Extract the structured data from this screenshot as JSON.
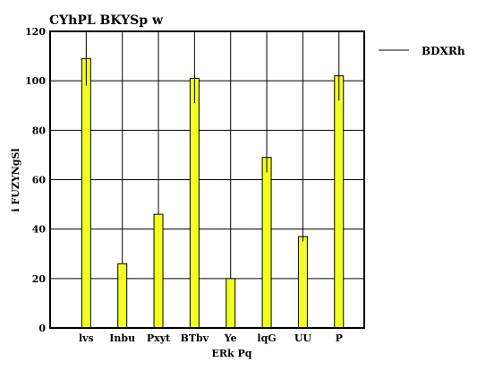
{
  "chart_data": {
    "type": "bar",
    "title": "CYhPL BKYSp w",
    "xlabel": "ERk Pq",
    "ylabel": "i FUZYNgSl",
    "categories": [
      "lvs",
      "Inbu",
      "Pxyt",
      "BTbv",
      "Ye",
      "lqG",
      "UU",
      "P"
    ],
    "series": [
      {
        "name": "BDXRh",
        "values": [
          109,
          26,
          46,
          101,
          20,
          69,
          37,
          102
        ],
        "error_low": [
          98,
          26,
          46,
          91,
          20,
          63,
          35,
          92
        ]
      }
    ],
    "ylim": [
      0,
      120
    ],
    "yticks": [
      0,
      20,
      40,
      60,
      80,
      100,
      120
    ],
    "grid": "horizontal",
    "legend_position": "right",
    "colors": {
      "bar_fill": "#f2ff1e",
      "bar_stroke": "#000000",
      "error_bar": "#000000",
      "grid": "#000000",
      "frame": "#000000"
    }
  }
}
